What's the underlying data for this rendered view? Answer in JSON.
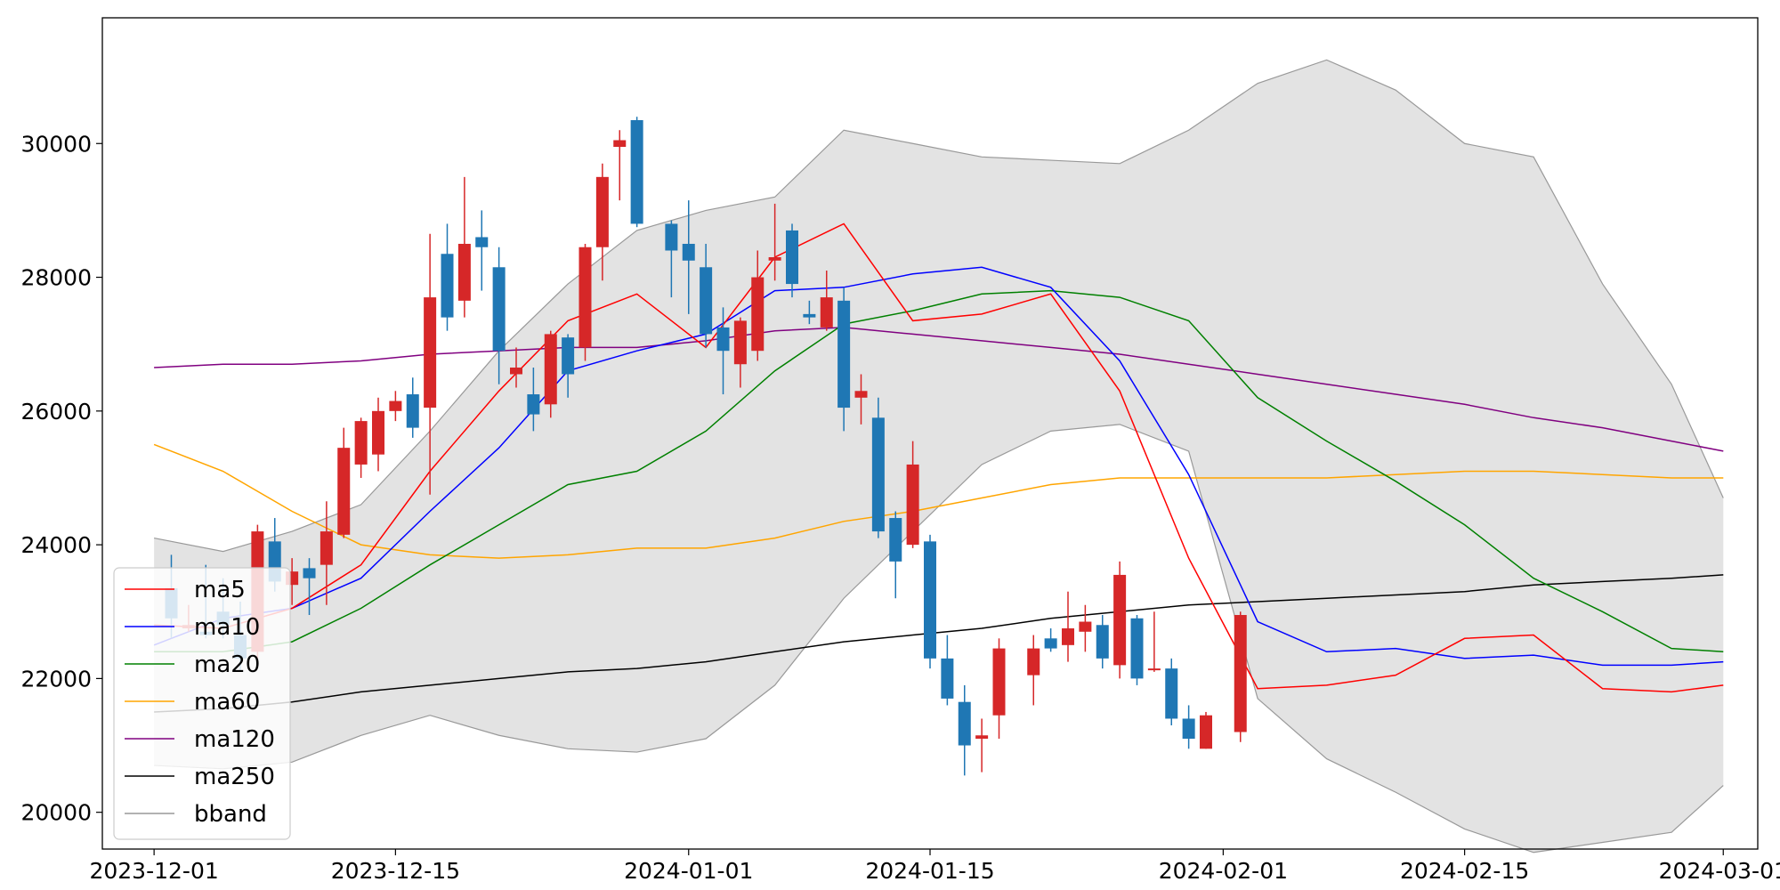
{
  "chart_data": {
    "type": "candlestick",
    "xlim": [
      "2023-11-28",
      "2024-03-03"
    ],
    "ylim": [
      19450,
      31880
    ],
    "x_ticks": [
      "2023-12-01",
      "2023-12-15",
      "2024-01-01",
      "2024-01-15",
      "2024-02-01",
      "2024-02-15",
      "2024-03-01"
    ],
    "y_ticks": [
      20000,
      22000,
      24000,
      26000,
      28000,
      30000
    ],
    "up_color": "#d62728",
    "down_color": "#1f77b4",
    "grid": false,
    "legend_placement": "lower-left",
    "series": [
      {
        "name": "ma5",
        "color": "#ff0000"
      },
      {
        "name": "ma10",
        "color": "#0000ff"
      },
      {
        "name": "ma20",
        "color": "#008000"
      },
      {
        "name": "ma60",
        "color": "#ffa500"
      },
      {
        "name": "ma120",
        "color": "#800080"
      },
      {
        "name": "ma250",
        "color": "#000000"
      },
      {
        "name": "bband",
        "color": "#999999"
      }
    ],
    "dates": [
      "2023-12-02",
      "2023-12-03",
      "2023-12-04",
      "2023-12-05",
      "2023-12-06",
      "2023-12-07",
      "2023-12-08",
      "2023-12-09",
      "2023-12-10",
      "2023-12-11",
      "2023-12-12",
      "2023-12-13",
      "2023-12-14",
      "2023-12-15",
      "2023-12-16",
      "2023-12-17",
      "2023-12-18",
      "2023-12-19",
      "2023-12-20",
      "2023-12-21",
      "2023-12-22",
      "2023-12-23",
      "2023-12-24",
      "2023-12-25",
      "2023-12-26",
      "2023-12-27",
      "2023-12-28",
      "2023-12-29",
      "2023-12-31",
      "2024-01-01",
      "2024-01-02",
      "2024-01-03",
      "2024-01-04",
      "2024-01-05",
      "2024-01-06",
      "2024-01-07",
      "2024-01-08",
      "2024-01-09",
      "2024-01-10",
      "2024-01-11",
      "2024-01-12",
      "2024-01-13",
      "2024-01-14",
      "2024-01-15",
      "2024-01-16",
      "2024-01-17",
      "2024-01-18",
      "2024-01-19",
      "2024-01-21",
      "2024-01-22",
      "2024-01-23",
      "2024-01-24",
      "2024-01-25",
      "2024-01-26",
      "2024-01-27",
      "2024-01-28",
      "2024-01-29",
      "2024-01-30",
      "2024-01-31",
      "2024-02-02",
      "2024-02-03",
      "2024-02-04",
      "2024-02-05",
      "2024-02-06",
      "2024-02-07",
      "2024-02-08",
      "2024-02-09",
      "2024-02-10",
      "2024-02-12",
      "2024-02-13",
      "2024-02-14",
      "2024-02-15",
      "2024-02-16",
      "2024-02-17",
      "2024-02-18",
      "2024-02-19",
      "2024-02-20",
      "2024-02-21",
      "2024-02-22",
      "2024-02-24",
      "2024-02-25",
      "2024-02-27"
    ],
    "candles": [
      [
        23350,
        22900,
        23850,
        22600
      ],
      [
        22750,
        22800,
        23100,
        22700
      ],
      [
        22700,
        22650,
        23700,
        22600
      ],
      [
        23000,
        22800,
        23500,
        22600
      ],
      [
        22650,
        22300,
        23150,
        22100
      ],
      [
        22400,
        24200,
        24300,
        22300
      ],
      [
        24050,
        23450,
        24400,
        23300
      ],
      [
        23400,
        23600,
        23800,
        23100
      ],
      [
        23650,
        23500,
        23800,
        22950
      ],
      [
        23700,
        24200,
        24650,
        23100
      ],
      [
        24150,
        25450,
        25750,
        24100
      ],
      [
        25200,
        25850,
        25900,
        25000
      ],
      [
        25350,
        26000,
        26200,
        25100
      ],
      [
        26000,
        26150,
        26300,
        25850
      ],
      [
        26250,
        25750,
        26500,
        25600
      ],
      [
        26050,
        27700,
        28650,
        24750
      ],
      [
        28350,
        27400,
        28800,
        27200
      ],
      [
        27650,
        28500,
        29500,
        27400
      ],
      [
        28600,
        28450,
        29000,
        27800
      ],
      [
        28150,
        26900,
        28450,
        26400
      ],
      [
        26550,
        26650,
        26950,
        26350
      ],
      [
        26250,
        25950,
        26650,
        25700
      ],
      [
        26100,
        27150,
        27200,
        25900
      ],
      [
        27100,
        26550,
        27150,
        26200
      ],
      [
        26950,
        28450,
        28500,
        26750
      ],
      [
        28450,
        29500,
        29700,
        27950
      ],
      [
        29950,
        30050,
        30200,
        29150
      ],
      [
        30350,
        28800,
        30400,
        28750
      ],
      [
        28800,
        28400,
        28850,
        27700
      ],
      [
        28500,
        28250,
        29150,
        27450
      ],
      [
        28150,
        27150,
        28500,
        26950
      ],
      [
        27250,
        26900,
        27550,
        26250
      ],
      [
        26700,
        27350,
        27400,
        26350
      ],
      [
        26900,
        28000,
        28400,
        26750
      ],
      [
        28250,
        28300,
        29100,
        27950
      ],
      [
        28700,
        27900,
        28800,
        27700
      ],
      [
        27450,
        27400,
        27650,
        27300
      ],
      [
        27250,
        27700,
        28100,
        27200
      ],
      [
        27650,
        26050,
        27850,
        25700
      ],
      [
        26200,
        26300,
        26550,
        25800
      ],
      [
        25900,
        24200,
        26200,
        24100
      ],
      [
        24400,
        23750,
        24500,
        23200
      ],
      [
        24000,
        25200,
        25550,
        23950
      ],
      [
        24050,
        22300,
        24150,
        22150
      ],
      [
        22300,
        21700,
        22650,
        21600
      ],
      [
        21650,
        21000,
        21900,
        20550
      ],
      [
        21100,
        21150,
        21400,
        20600
      ],
      [
        21450,
        22450,
        22600,
        21100
      ],
      [
        22050,
        22450,
        22650,
        21600
      ],
      [
        22600,
        22450,
        22750,
        22400
      ],
      [
        22500,
        22750,
        23300,
        22250
      ],
      [
        22700,
        22850,
        23100,
        22400
      ],
      [
        22800,
        22300,
        22950,
        22150
      ],
      [
        22200,
        23550,
        23750,
        22000
      ],
      [
        22900,
        22000,
        22950,
        21900
      ],
      [
        22150,
        22150,
        23000,
        22100
      ],
      [
        22150,
        21400,
        22300,
        21300
      ],
      [
        21400,
        21100,
        21600,
        20950
      ],
      [
        20950,
        21450,
        21500,
        20950
      ],
      [
        21200,
        22950,
        23000,
        21050
      ]
    ],
    "candle_dates": [
      "2023-12-02",
      "2023-12-03",
      "2023-12-04",
      "2023-12-05",
      "2023-12-06",
      "2023-12-07",
      "2023-12-08",
      "2023-12-09",
      "2023-12-10",
      "2023-12-11",
      "2023-12-12",
      "2023-12-13",
      "2023-12-14",
      "2023-12-15",
      "2023-12-16",
      "2023-12-17",
      "2023-12-18",
      "2023-12-19",
      "2023-12-20",
      "2023-12-21",
      "2023-12-22",
      "2023-12-23",
      "2023-12-24",
      "2023-12-25",
      "2023-12-26",
      "2023-12-27",
      "2023-12-28",
      "2023-12-29",
      "2023-12-31",
      "2024-01-01",
      "2024-01-02",
      "2024-01-03",
      "2024-01-04",
      "2024-01-05",
      "2024-01-06",
      "2024-01-07",
      "2024-01-08",
      "2024-01-09",
      "2024-01-10",
      "2024-01-11",
      "2024-01-12",
      "2024-01-13",
      "2024-01-14",
      "2024-01-15",
      "2024-01-16",
      "2024-01-17",
      "2024-01-18",
      "2024-01-19",
      "2024-01-21",
      "2024-01-22",
      "2024-01-23",
      "2024-01-24",
      "2024-01-25",
      "2024-01-26",
      "2024-01-27",
      "2024-01-28",
      "2024-01-29",
      "2024-01-30",
      "2024-01-31",
      "2024-02-02"
    ],
    "ma_dates": [
      "2023-12-01",
      "2023-12-05",
      "2023-12-09",
      "2023-12-13",
      "2023-12-17",
      "2023-12-21",
      "2023-12-25",
      "2023-12-29",
      "2024-01-02",
      "2024-01-06",
      "2024-01-10",
      "2024-01-14",
      "2024-01-18",
      "2024-01-22",
      "2024-01-26",
      "2024-01-30",
      "2024-02-03",
      "2024-02-07",
      "2024-02-11",
      "2024-02-15",
      "2024-02-19",
      "2024-02-23",
      "2024-02-27",
      "2024-03-01"
    ],
    "ma5": [
      22800,
      22750,
      23050,
      23700,
      25100,
      26300,
      27350,
      27750,
      26950,
      28300,
      28800,
      27350,
      27450,
      27750,
      26300,
      23800,
      21850,
      21900,
      22050,
      22600,
      22650,
      21850,
      21800,
      21900
    ],
    "ma10": [
      22500,
      22900,
      23050,
      23500,
      24500,
      25450,
      26600,
      26900,
      27150,
      27800,
      27850,
      28050,
      28150,
      27850,
      26750,
      25050,
      22850,
      22400,
      22450,
      22300,
      22350,
      22200,
      22200,
      22250
    ],
    "ma20": [
      22400,
      22400,
      22550,
      23050,
      23700,
      24300,
      24900,
      25100,
      25700,
      26600,
      27300,
      27500,
      27750,
      27800,
      27700,
      27350,
      26200,
      25550,
      24950,
      24300,
      23500,
      23000,
      22450,
      22400
    ],
    "ma60": [
      25500,
      25100,
      24500,
      24000,
      23850,
      23800,
      23850,
      23950,
      23950,
      24100,
      24350,
      24500,
      24700,
      24900,
      25000,
      25000,
      25000,
      25000,
      25050,
      25100,
      25100,
      25050,
      25000,
      25000
    ],
    "ma120": [
      26650,
      26700,
      26700,
      26750,
      26850,
      26900,
      26950,
      26950,
      27050,
      27200,
      27250,
      27150,
      27050,
      26950,
      26850,
      26700,
      26550,
      26400,
      26250,
      26100,
      25900,
      25750,
      25550,
      25400
    ],
    "ma250": [
      21500,
      21550,
      21650,
      21800,
      21900,
      22000,
      22100,
      22150,
      22250,
      22400,
      22550,
      22650,
      22750,
      22900,
      23000,
      23100,
      23150,
      23200,
      23250,
      23300,
      23400,
      23450,
      23500,
      23550
    ],
    "bband_upper": [
      24100,
      23900,
      24200,
      24600,
      25700,
      26900,
      27900,
      28700,
      29000,
      29200,
      30200,
      30000,
      29800,
      29750,
      29700,
      30200,
      30900,
      31250,
      30800,
      30000,
      29800,
      27900,
      26400,
      24700
    ],
    "bband_lower": [
      20700,
      20650,
      20750,
      21150,
      21450,
      21150,
      20950,
      20900,
      21100,
      21900,
      23200,
      24200,
      25200,
      25700,
      25800,
      25400,
      21700,
      20800,
      20300,
      19750,
      19400,
      19550,
      19700,
      20400
    ]
  }
}
